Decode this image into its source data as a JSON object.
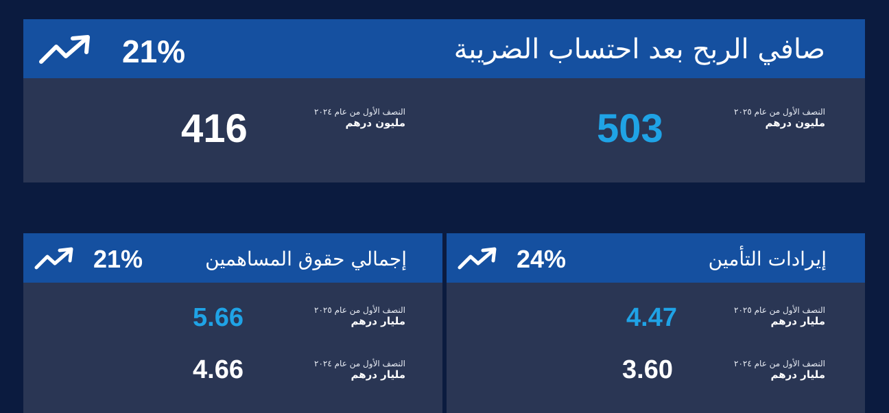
{
  "colors": {
    "background": "#0b1b3f",
    "header": "#1550a0",
    "body": "#2a3654",
    "accent": "#1fa3e6",
    "text": "#ffffff"
  },
  "net_profit": {
    "title": "صافي الربح بعد احتساب الضريبة",
    "change": "21%",
    "icon": "trending-up-icon",
    "current": {
      "period": "النصف الأول من عام ٢٠٢٥",
      "unit": "مليون درهم",
      "value": "503"
    },
    "previous": {
      "period": "النصف الأول من عام ٢٠٢٤",
      "unit": "مليون درهم",
      "value": "416"
    }
  },
  "shareholders_equity": {
    "title": "إجمالي حقوق المساهمين",
    "change": "21%",
    "icon": "trending-up-icon",
    "current": {
      "period": "النصف الأول من عام ٢٠٢٥",
      "unit": "مليار درهم",
      "value": "5.66"
    },
    "previous": {
      "period": "النصف الأول من عام ٢٠٢٤",
      "unit": "مليار درهم",
      "value": "4.66"
    }
  },
  "insurance_revenue": {
    "title": "إيرادات التأمين",
    "change": "24%",
    "icon": "trending-up-icon",
    "current": {
      "period": "النصف الأول من عام ٢٠٢٥",
      "unit": "مليار درهم",
      "value": "4.47"
    },
    "previous": {
      "period": "النصف الأول من عام ٢٠٢٤",
      "unit": "مليار درهم",
      "value": "3.60"
    }
  }
}
